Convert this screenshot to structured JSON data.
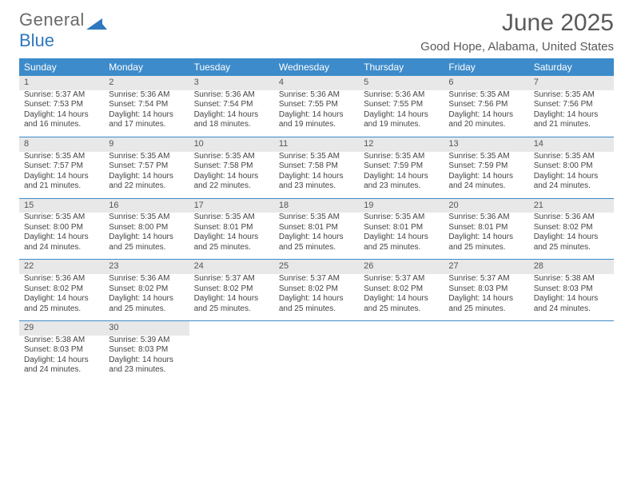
{
  "logo": {
    "text1": "General",
    "text2": "Blue"
  },
  "title": {
    "month": "June 2025",
    "location": "Good Hope, Alabama, United States"
  },
  "colors": {
    "header_bg": "#3d8bca",
    "daynum_bg": "#e8e8e8",
    "week_divider": "#3d8bca",
    "text": "#444444",
    "title_text": "#5a5a5a"
  },
  "layout": {
    "cols": 7,
    "rows": 5,
    "header_font_size": 12,
    "day_font_size": 10,
    "divider_width": 1
  },
  "weekdays": [
    "Sunday",
    "Monday",
    "Tuesday",
    "Wednesday",
    "Thursday",
    "Friday",
    "Saturday"
  ],
  "days": [
    {
      "n": "1",
      "sr": "5:37 AM",
      "ss": "7:53 PM",
      "dl": "14 hours and 16 minutes."
    },
    {
      "n": "2",
      "sr": "5:36 AM",
      "ss": "7:54 PM",
      "dl": "14 hours and 17 minutes."
    },
    {
      "n": "3",
      "sr": "5:36 AM",
      "ss": "7:54 PM",
      "dl": "14 hours and 18 minutes."
    },
    {
      "n": "4",
      "sr": "5:36 AM",
      "ss": "7:55 PM",
      "dl": "14 hours and 19 minutes."
    },
    {
      "n": "5",
      "sr": "5:36 AM",
      "ss": "7:55 PM",
      "dl": "14 hours and 19 minutes."
    },
    {
      "n": "6",
      "sr": "5:35 AM",
      "ss": "7:56 PM",
      "dl": "14 hours and 20 minutes."
    },
    {
      "n": "7",
      "sr": "5:35 AM",
      "ss": "7:56 PM",
      "dl": "14 hours and 21 minutes."
    },
    {
      "n": "8",
      "sr": "5:35 AM",
      "ss": "7:57 PM",
      "dl": "14 hours and 21 minutes."
    },
    {
      "n": "9",
      "sr": "5:35 AM",
      "ss": "7:57 PM",
      "dl": "14 hours and 22 minutes."
    },
    {
      "n": "10",
      "sr": "5:35 AM",
      "ss": "7:58 PM",
      "dl": "14 hours and 22 minutes."
    },
    {
      "n": "11",
      "sr": "5:35 AM",
      "ss": "7:58 PM",
      "dl": "14 hours and 23 minutes."
    },
    {
      "n": "12",
      "sr": "5:35 AM",
      "ss": "7:59 PM",
      "dl": "14 hours and 23 minutes."
    },
    {
      "n": "13",
      "sr": "5:35 AM",
      "ss": "7:59 PM",
      "dl": "14 hours and 24 minutes."
    },
    {
      "n": "14",
      "sr": "5:35 AM",
      "ss": "8:00 PM",
      "dl": "14 hours and 24 minutes."
    },
    {
      "n": "15",
      "sr": "5:35 AM",
      "ss": "8:00 PM",
      "dl": "14 hours and 24 minutes."
    },
    {
      "n": "16",
      "sr": "5:35 AM",
      "ss": "8:00 PM",
      "dl": "14 hours and 25 minutes."
    },
    {
      "n": "17",
      "sr": "5:35 AM",
      "ss": "8:01 PM",
      "dl": "14 hours and 25 minutes."
    },
    {
      "n": "18",
      "sr": "5:35 AM",
      "ss": "8:01 PM",
      "dl": "14 hours and 25 minutes."
    },
    {
      "n": "19",
      "sr": "5:35 AM",
      "ss": "8:01 PM",
      "dl": "14 hours and 25 minutes."
    },
    {
      "n": "20",
      "sr": "5:36 AM",
      "ss": "8:01 PM",
      "dl": "14 hours and 25 minutes."
    },
    {
      "n": "21",
      "sr": "5:36 AM",
      "ss": "8:02 PM",
      "dl": "14 hours and 25 minutes."
    },
    {
      "n": "22",
      "sr": "5:36 AM",
      "ss": "8:02 PM",
      "dl": "14 hours and 25 minutes."
    },
    {
      "n": "23",
      "sr": "5:36 AM",
      "ss": "8:02 PM",
      "dl": "14 hours and 25 minutes."
    },
    {
      "n": "24",
      "sr": "5:37 AM",
      "ss": "8:02 PM",
      "dl": "14 hours and 25 minutes."
    },
    {
      "n": "25",
      "sr": "5:37 AM",
      "ss": "8:02 PM",
      "dl": "14 hours and 25 minutes."
    },
    {
      "n": "26",
      "sr": "5:37 AM",
      "ss": "8:02 PM",
      "dl": "14 hours and 25 minutes."
    },
    {
      "n": "27",
      "sr": "5:37 AM",
      "ss": "8:03 PM",
      "dl": "14 hours and 25 minutes."
    },
    {
      "n": "28",
      "sr": "5:38 AM",
      "ss": "8:03 PM",
      "dl": "14 hours and 24 minutes."
    },
    {
      "n": "29",
      "sr": "5:38 AM",
      "ss": "8:03 PM",
      "dl": "14 hours and 24 minutes."
    },
    {
      "n": "30",
      "sr": "5:39 AM",
      "ss": "8:03 PM",
      "dl": "14 hours and 23 minutes."
    }
  ],
  "labels": {
    "sunrise": "Sunrise:",
    "sunset": "Sunset:",
    "daylight": "Daylight:"
  }
}
